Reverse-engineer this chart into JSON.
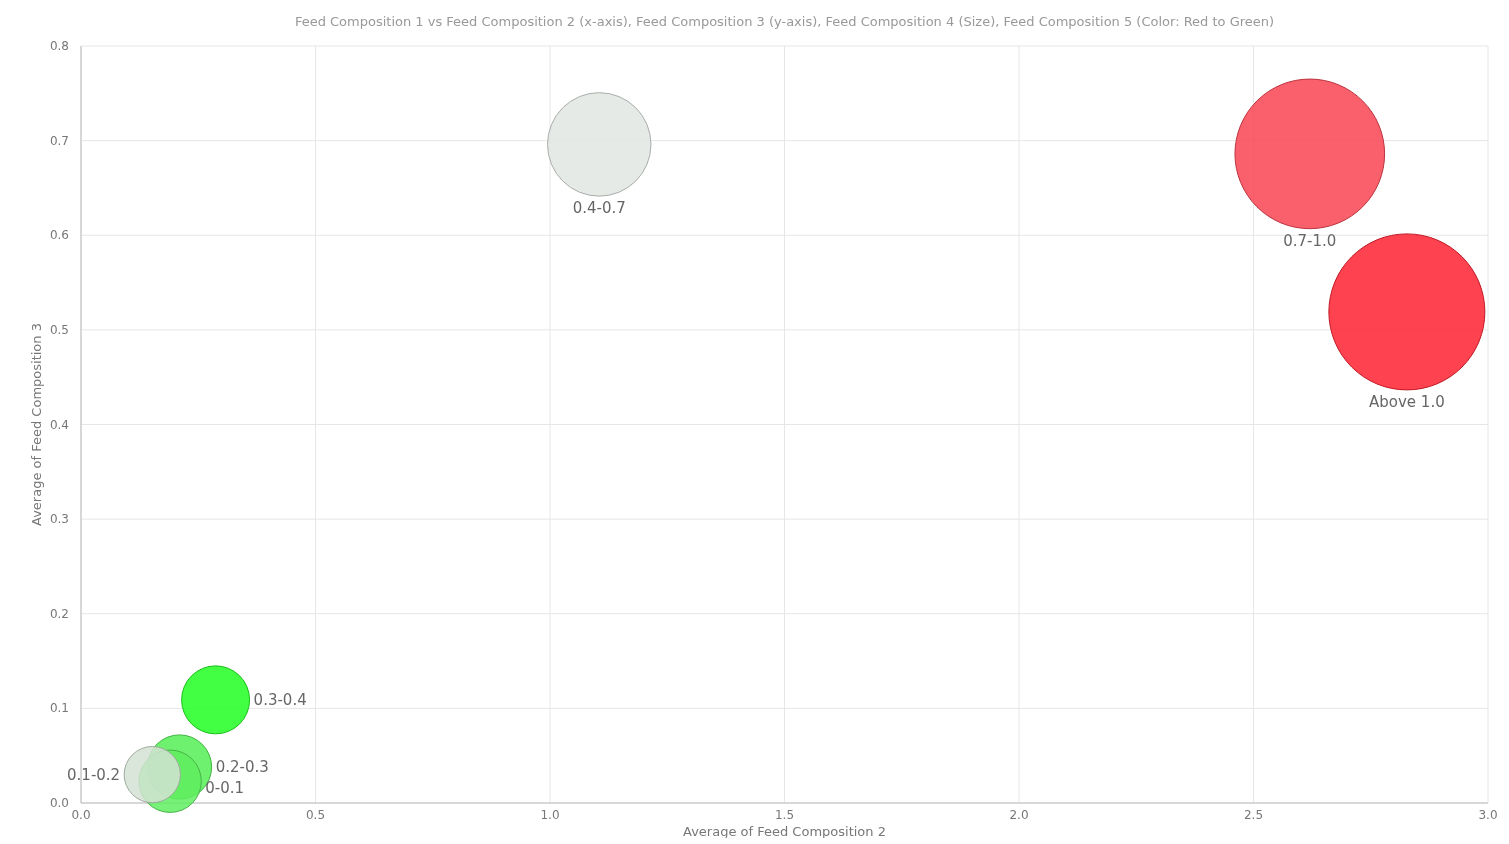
{
  "chart_data": {
    "type": "bubble",
    "title": "Feed Composition 1 vs Feed Composition 2 (x-axis), Feed Composition 3 (y-axis), Feed Composition 4 (Size), Feed Composition 5 (Color: Red to Green)",
    "xlabel": "Average of Feed Composition 2",
    "ylabel": "Average of Feed Composition 3",
    "xlim": [
      0,
      3
    ],
    "ylim": [
      0,
      0.8
    ],
    "xticks": [
      {
        "value": 0,
        "label": "0.0"
      },
      {
        "value": 0.5,
        "label": "0.5"
      },
      {
        "value": 1,
        "label": "1.0"
      },
      {
        "value": 1.5,
        "label": "1.5"
      },
      {
        "value": 2,
        "label": "2.0"
      },
      {
        "value": 2.5,
        "label": "2.5"
      },
      {
        "value": 3,
        "label": "3.0"
      }
    ],
    "yticks": [
      {
        "value": 0,
        "label": "0.0"
      },
      {
        "value": 0.1,
        "label": "0.1"
      },
      {
        "value": 0.2,
        "label": "0.2"
      },
      {
        "value": 0.3,
        "label": "0.3"
      },
      {
        "value": 0.4,
        "label": "0.4"
      },
      {
        "value": 0.5,
        "label": "0.5"
      },
      {
        "value": 0.6,
        "label": "0.6"
      },
      {
        "value": 0.7,
        "label": "0.7"
      },
      {
        "value": 0.8,
        "label": "0.8"
      }
    ],
    "grid": true,
    "series": [
      {
        "name": "0.4-0.7",
        "color": "#e2e6e2",
        "x": [
          1.105
        ],
        "values": [
          0.696
        ],
        "sizes": [
          0.44
        ]
      },
      {
        "name": "0.7-1.0",
        "color": "#f94452",
        "x": [
          2.62
        ],
        "values": [
          0.686
        ],
        "sizes": [
          0.92
        ]
      },
      {
        "name": "Above 1.0",
        "color": "#ff2130",
        "x": [
          2.827
        ],
        "values": [
          0.519
        ],
        "sizes": [
          1
        ]
      },
      {
        "name": "0.3-0.4",
        "color": "#22ff22",
        "x": [
          0.287
        ],
        "values": [
          0.109
        ],
        "sizes": [
          0.19
        ]
      },
      {
        "name": "0.2-0.3",
        "color": "#55ee55",
        "x": [
          0.21
        ],
        "values": [
          0.038
        ],
        "sizes": [
          0.17
        ]
      },
      {
        "name": "0.1-0.2",
        "color": "#d4e2d4",
        "x": [
          0.152
        ],
        "values": [
          0.03
        ],
        "sizes": [
          0.13
        ]
      },
      {
        "name": "0-0.1",
        "color": "#5fee5f",
        "x": [
          0.19
        ],
        "values": [
          0.023
        ],
        "sizes": [
          0.16
        ]
      }
    ]
  }
}
